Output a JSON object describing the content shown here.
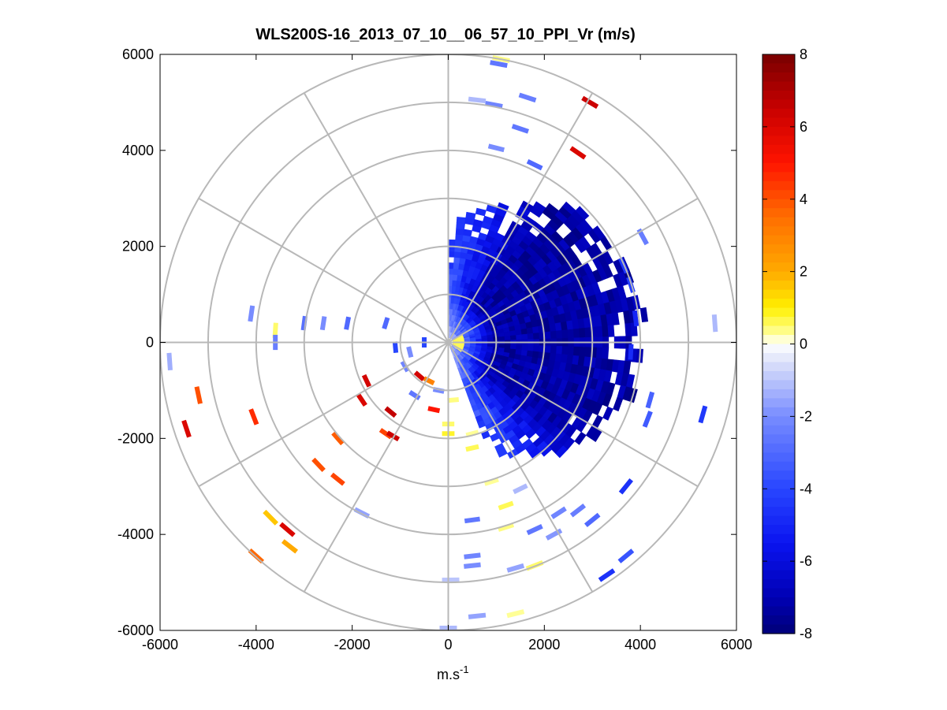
{
  "chart_data": {
    "type": "polar-ppi-scatter",
    "title": "WLS200S-16_2013_07_10__06_57_10_PPI_Vr (m/s)",
    "xlabel_base": "m.s",
    "xlabel_sup": "-1",
    "ylabel": "",
    "xlim": [
      -6000,
      6000
    ],
    "ylim": [
      -6000,
      6000
    ],
    "xticks": [
      -6000,
      -4000,
      -2000,
      0,
      2000,
      4000,
      6000
    ],
    "yticks": [
      -6000,
      -4000,
      -2000,
      0,
      2000,
      4000,
      6000
    ],
    "xtick_labels": [
      "-6000",
      "-4000",
      "-2000",
      "0",
      "2000",
      "4000",
      "6000"
    ],
    "ytick_labels": [
      "-6000",
      "-4000",
      "-2000",
      "0",
      "2000",
      "4000",
      "6000"
    ],
    "range_rings_m": [
      1000,
      2000,
      3000,
      4000,
      5000,
      6000
    ],
    "spoke_angles_deg": [
      0,
      30,
      60,
      90,
      120,
      150,
      180,
      210,
      240,
      270,
      300,
      330
    ],
    "colorbar": {
      "min": -8,
      "max": 8,
      "ticks": [
        -8,
        -6,
        -4,
        -2,
        0,
        2,
        4,
        6,
        8
      ],
      "tick_labels": [
        "-8",
        "-6",
        "-4",
        "-2",
        "0",
        "2",
        "4",
        "6",
        "8"
      ],
      "colormap": "blue-white-yellow-red"
    },
    "dense_sector": {
      "description": "strong negative radial velocity sector east of lidar",
      "bearing_deg_start": 0,
      "bearing_deg_end": 160,
      "range_m_start": 100,
      "range_m_max": 4000,
      "vr_core": -7.2
    },
    "scattered_gates": [
      {
        "x": 1100,
        "y": 5900,
        "vr": 0.4
      },
      {
        "x": 1050,
        "y": 5800,
        "vr": -2.6
      },
      {
        "x": 2950,
        "y": 5000,
        "vr": 6.4
      },
      {
        "x": 2700,
        "y": 3950,
        "vr": 6.0
      },
      {
        "x": 600,
        "y": 5050,
        "vr": -1.2
      },
      {
        "x": 950,
        "y": 4950,
        "vr": -2.2
      },
      {
        "x": 1650,
        "y": 5100,
        "vr": -2.4
      },
      {
        "x": 1500,
        "y": 4450,
        "vr": -2.6
      },
      {
        "x": 1000,
        "y": 4050,
        "vr": -2.0
      },
      {
        "x": 1800,
        "y": 3700,
        "vr": -3.0
      },
      {
        "x": 4050,
        "y": 2200,
        "vr": -2.4
      },
      {
        "x": 5550,
        "y": 400,
        "vr": -1.2
      },
      {
        "x": 3800,
        "y": 1200,
        "vr": -4.2
      },
      {
        "x": 3650,
        "y": 1600,
        "vr": -4.4
      },
      {
        "x": 3900,
        "y": 500,
        "vr": -5.0
      },
      {
        "x": 3800,
        "y": -200,
        "vr": -4.8
      },
      {
        "x": 4200,
        "y": -1200,
        "vr": -3.2
      },
      {
        "x": 4150,
        "y": -1600,
        "vr": -3.4
      },
      {
        "x": 5300,
        "y": -1500,
        "vr": -4.4
      },
      {
        "x": 3700,
        "y": -3000,
        "vr": -4.6
      },
      {
        "x": 3700,
        "y": -4450,
        "vr": -3.6
      },
      {
        "x": 3300,
        "y": -4850,
        "vr": -4.6
      },
      {
        "x": 3000,
        "y": -3700,
        "vr": -3.0
      },
      {
        "x": 2700,
        "y": -3500,
        "vr": -2.4
      },
      {
        "x": 2300,
        "y": -3550,
        "vr": -2.2
      },
      {
        "x": 1800,
        "y": -3900,
        "vr": -2.6
      },
      {
        "x": 1200,
        "y": -3850,
        "vr": 0.4
      },
      {
        "x": 2200,
        "y": -4000,
        "vr": -1.8
      },
      {
        "x": 1200,
        "y": -3400,
        "vr": 0.6
      },
      {
        "x": 900,
        "y": -2900,
        "vr": 0.3
      },
      {
        "x": 1500,
        "y": -3050,
        "vr": -1.2
      },
      {
        "x": 1400,
        "y": -4700,
        "vr": -1.6
      },
      {
        "x": 1800,
        "y": -4650,
        "vr": 0.5
      },
      {
        "x": 500,
        "y": -4450,
        "vr": -2.2
      },
      {
        "x": 500,
        "y": -4650,
        "vr": -2.0
      },
      {
        "x": 500,
        "y": -3700,
        "vr": -2.6
      },
      {
        "x": 50,
        "y": -4950,
        "vr": -1.0
      },
      {
        "x": 1400,
        "y": -5650,
        "vr": 0.3
      },
      {
        "x": 600,
        "y": -5700,
        "vr": -1.6
      },
      {
        "x": 0,
        "y": -5950,
        "vr": -1.2
      },
      {
        "x": -5800,
        "y": -400,
        "vr": -1.4
      },
      {
        "x": -5450,
        "y": -1800,
        "vr": 6.0
      },
      {
        "x": -5200,
        "y": -1100,
        "vr": 4.0
      },
      {
        "x": -4050,
        "y": -1550,
        "vr": 4.6
      },
      {
        "x": -3700,
        "y": -3650,
        "vr": 1.6
      },
      {
        "x": -3350,
        "y": -3900,
        "vr": 6.0
      },
      {
        "x": -3300,
        "y": -4250,
        "vr": 2.0
      },
      {
        "x": -4000,
        "y": -4450,
        "vr": 3.6
      },
      {
        "x": -2700,
        "y": -2550,
        "vr": 4.0
      },
      {
        "x": -2300,
        "y": -2850,
        "vr": 4.2
      },
      {
        "x": -2300,
        "y": -2000,
        "vr": 3.8
      },
      {
        "x": -1300,
        "y": -1900,
        "vr": 4.2
      },
      {
        "x": -1150,
        "y": -1950,
        "vr": 6.4
      },
      {
        "x": -1800,
        "y": -1200,
        "vr": 6.0
      },
      {
        "x": -1700,
        "y": -800,
        "vr": 6.2
      },
      {
        "x": -1200,
        "y": -1450,
        "vr": 6.6
      },
      {
        "x": -4100,
        "y": 600,
        "vr": -2.0
      },
      {
        "x": -3600,
        "y": 250,
        "vr": 0.5
      },
      {
        "x": -3600,
        "y": 0,
        "vr": -2.4
      },
      {
        "x": -3000,
        "y": 400,
        "vr": -2.8
      },
      {
        "x": -2600,
        "y": 400,
        "vr": -2.0
      },
      {
        "x": -2100,
        "y": 400,
        "vr": -3.0
      },
      {
        "x": -1300,
        "y": 400,
        "vr": -3.0
      },
      {
        "x": -1800,
        "y": -3550,
        "vr": -1.6
      },
      {
        "x": -1100,
        "y": -100,
        "vr": -4.0
      },
      {
        "x": -800,
        "y": -200,
        "vr": -2.0
      },
      {
        "x": -500,
        "y": 0,
        "vr": -4.0
      },
      {
        "x": -900,
        "y": -500,
        "vr": -2.2
      },
      {
        "x": -600,
        "y": -700,
        "vr": 6.2
      },
      {
        "x": -400,
        "y": -800,
        "vr": 3.0
      },
      {
        "x": -200,
        "y": -1000,
        "vr": -2.0
      },
      {
        "x": -700,
        "y": -1100,
        "vr": -2.6
      },
      {
        "x": -300,
        "y": -1400,
        "vr": 5.0
      },
      {
        "x": 0,
        "y": -1700,
        "vr": 0.5
      },
      {
        "x": 100,
        "y": -1200,
        "vr": 0.4
      },
      {
        "x": 0,
        "y": -1900,
        "vr": 0.8
      },
      {
        "x": 500,
        "y": -2200,
        "vr": 0.6
      },
      {
        "x": 500,
        "y": -1900,
        "vr": 0.3
      }
    ]
  }
}
